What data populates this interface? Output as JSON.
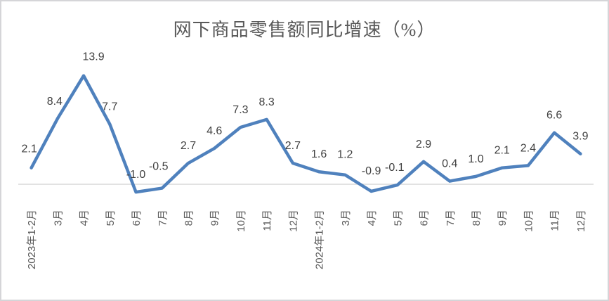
{
  "window": {
    "background": "#ffffff",
    "border_color": "#d5d5d8"
  },
  "chart_data": {
    "type": "line",
    "title": "网下商品零售额同比增速（%）",
    "categories": [
      "2023年1-2月",
      "3月",
      "4月",
      "5月",
      "6月",
      "7月",
      "8月",
      "9月",
      "10月",
      "11月",
      "12月",
      "2024年1-2月",
      "3月",
      "4月",
      "5月",
      "6月",
      "7月",
      "8月",
      "9月",
      "10月",
      "11月",
      "12月"
    ],
    "values": [
      2.1,
      8.4,
      13.9,
      7.7,
      -1.0,
      -0.5,
      2.7,
      4.6,
      7.3,
      8.3,
      2.7,
      1.6,
      1.2,
      -0.9,
      -0.1,
      2.9,
      0.4,
      1.0,
      2.1,
      2.4,
      6.6,
      3.9
    ],
    "data_labels": [
      "2.1",
      "8.4",
      "13.9",
      "7.7",
      "-1.0",
      "-0.5",
      "2.7",
      "4.6",
      "7.3",
      "8.3",
      "2.7",
      "1.6",
      "1.2",
      "-0.9",
      "-0.1",
      "2.9",
      "0.4",
      "1.0",
      "2.1",
      "2.4",
      "6.6",
      "3.9"
    ],
    "xlabel": "",
    "ylabel": "",
    "ylim": [
      -2.5,
      16
    ],
    "legend": "none",
    "gridlines": "zero-line-only",
    "line_color": "#4F81BD",
    "data_label_color": "#404040",
    "axis_label_color": "#595959",
    "title_color": "#595959",
    "zero_line_color": "#D9D9D9"
  }
}
